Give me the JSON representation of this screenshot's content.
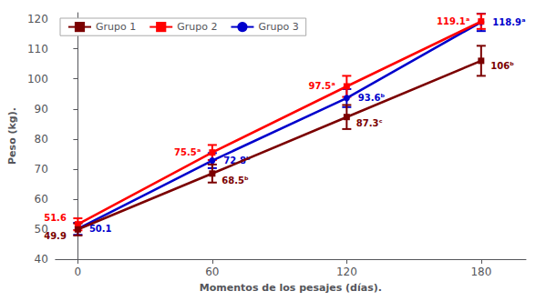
{
  "chart_data": {
    "type": "line",
    "xlabel": "Momentos de los pesajes (días).",
    "ylabel": "Peso (kg).",
    "x": [
      0,
      60,
      120,
      180
    ],
    "xlim": [
      -10,
      200
    ],
    "ylim": [
      40,
      122
    ],
    "xticks": [
      0,
      60,
      120,
      180
    ],
    "yticks": [
      40,
      50,
      60,
      70,
      80,
      90,
      100,
      110,
      120
    ],
    "grid": false,
    "legend": "upper left",
    "data_labels": true,
    "series": [
      {
        "name": "Grupo 1",
        "color": "#7B0000",
        "marker": "square",
        "values": [
          49.9,
          68.5,
          87.3,
          106.0
        ],
        "errors": [
          2.0,
          3.0,
          4.0,
          5.0
        ],
        "value_labels": [
          "49.9",
          "68.5ᵇ",
          "87.3ᶜ",
          "106ᵇ"
        ]
      },
      {
        "name": "Grupo 2",
        "color": "#FF0000",
        "marker": "square",
        "values": [
          51.6,
          75.5,
          97.5,
          119.1
        ],
        "errors": [
          2.0,
          2.5,
          3.5,
          2.5
        ],
        "value_labels": [
          "51.6",
          "75.5ᵃ",
          "97.5ᵃ",
          "119.1ᵃ"
        ]
      },
      {
        "name": "Grupo 3",
        "color": "#0000CC",
        "marker": "circle",
        "values": [
          50.1,
          72.8,
          93.6,
          118.9
        ],
        "errors": [
          2.0,
          2.5,
          3.0,
          3.0
        ],
        "value_labels": [
          "50.1",
          "72.8ᵇ",
          "93.6ᵇ",
          "118.9ᵃ"
        ]
      }
    ]
  }
}
